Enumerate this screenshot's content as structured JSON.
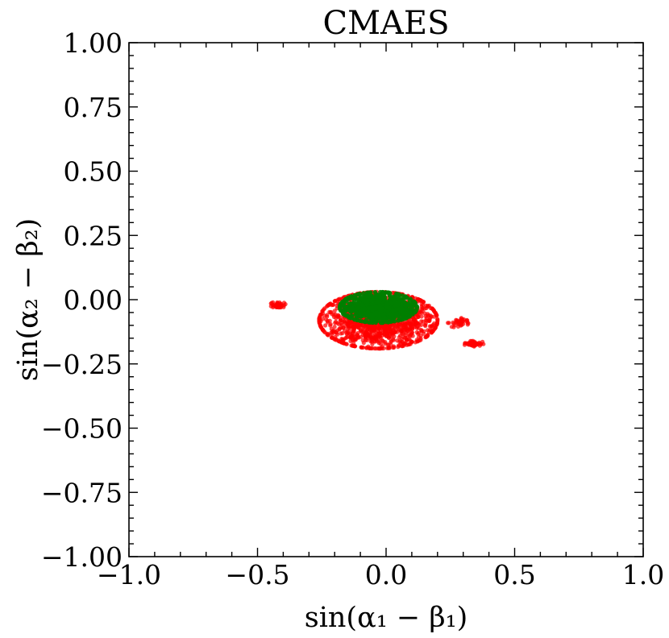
{
  "chart_data": {
    "type": "scatter",
    "title": "CMAES",
    "xlabel": "sin(α₁ − β₁)",
    "ylabel": "sin(α₂ − β₂)",
    "xlim": [
      -1.0,
      1.0
    ],
    "ylim": [
      -1.0,
      1.0
    ],
    "x_ticks": [
      -1.0,
      -0.5,
      0.0,
      0.5,
      1.0
    ],
    "x_tick_labels": [
      "−1.0",
      "−0.5",
      "0.0",
      "0.5",
      "1.0"
    ],
    "y_ticks": [
      1.0,
      0.75,
      0.5,
      0.25,
      0.0,
      -0.25,
      -0.5,
      -0.75,
      -1.0
    ],
    "y_tick_labels": [
      "1.00",
      "0.75",
      "0.50",
      "0.25",
      "0.00",
      "−0.25",
      "−0.50",
      "−0.75",
      "−1.00"
    ],
    "grid": false,
    "legend": "none",
    "series": [
      {
        "color": "#ff0000",
        "clusters": [
          {
            "cx": -0.03,
            "cy": -0.08,
            "sx": 0.23,
            "sy": 0.11,
            "n": 1400
          },
          {
            "cx": -0.42,
            "cy": -0.02,
            "sx": 0.03,
            "sy": 0.013,
            "n": 40
          },
          {
            "cx": 0.34,
            "cy": -0.17,
            "sx": 0.04,
            "sy": 0.012,
            "n": 45
          },
          {
            "cx": 0.28,
            "cy": -0.09,
            "sx": 0.04,
            "sy": 0.02,
            "n": 40
          }
        ]
      },
      {
        "color": "#008000",
        "clusters": [
          {
            "cx": -0.03,
            "cy": -0.03,
            "sx": 0.15,
            "sy": 0.06,
            "n": 900
          }
        ]
      }
    ]
  }
}
